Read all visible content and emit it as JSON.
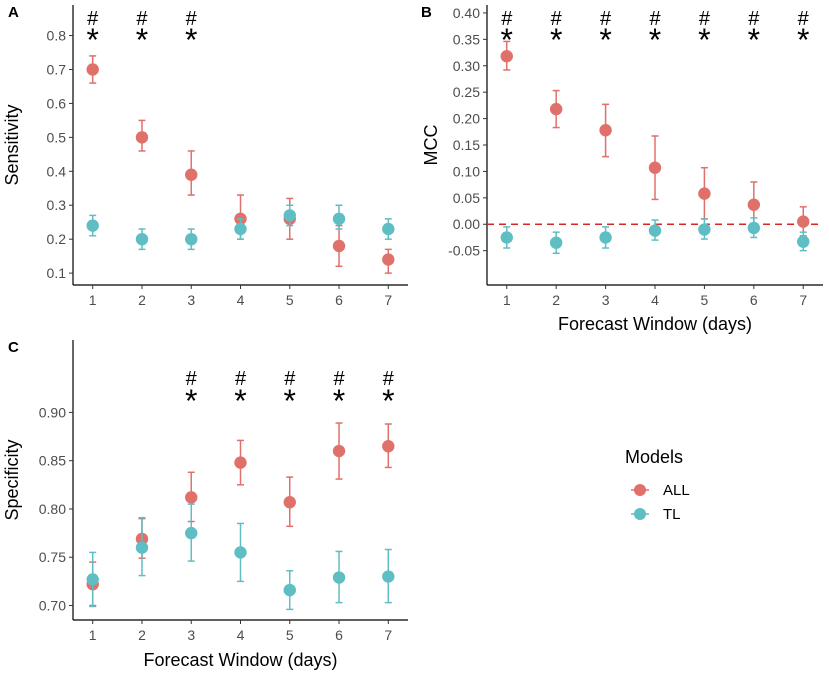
{
  "chart_data": [
    {
      "panel": "A",
      "type": "scatter",
      "title": "",
      "xlabel": "",
      "ylabel": "Sensitivity",
      "categories": [
        1,
        2,
        3,
        4,
        5,
        6,
        7
      ],
      "xlim": [
        0.6,
        7.4
      ],
      "ylim": [
        0.065,
        0.89
      ],
      "yticks": [
        0.1,
        0.2,
        0.3,
        0.4,
        0.5,
        0.6,
        0.7,
        0.8
      ],
      "ytick_labels": [
        "0.1",
        "0.2",
        "0.3",
        "0.4",
        "0.5",
        "0.6",
        "0.7",
        "0.8"
      ],
      "series": [
        {
          "name": "ALL",
          "values": [
            0.7,
            0.5,
            0.39,
            0.26,
            0.26,
            0.18,
            0.14
          ],
          "lower": [
            0.66,
            0.46,
            0.33,
            0.2,
            0.2,
            0.12,
            0.1
          ],
          "upper": [
            0.74,
            0.55,
            0.46,
            0.33,
            0.32,
            0.24,
            0.17
          ]
        },
        {
          "name": "TL",
          "values": [
            0.24,
            0.2,
            0.2,
            0.23,
            0.27,
            0.26,
            0.23
          ],
          "lower": [
            0.21,
            0.17,
            0.17,
            0.2,
            0.24,
            0.23,
            0.2
          ],
          "upper": [
            0.27,
            0.23,
            0.23,
            0.26,
            0.3,
            0.3,
            0.26
          ]
        }
      ],
      "annotations": [
        {
          "x": 1,
          "hash": "#",
          "star": "*"
        },
        {
          "x": 2,
          "hash": "#",
          "star": "*"
        },
        {
          "x": 3,
          "hash": "#",
          "star": "*"
        }
      ]
    },
    {
      "panel": "B",
      "type": "scatter",
      "title": "",
      "xlabel": "Forecast Window (days)",
      "ylabel": "MCC",
      "categories": [
        1,
        2,
        3,
        4,
        5,
        6,
        7
      ],
      "xlim": [
        0.6,
        7.4
      ],
      "ylim": [
        -0.115,
        0.415
      ],
      "yticks": [
        -0.05,
        0.0,
        0.05,
        0.1,
        0.15,
        0.2,
        0.25,
        0.3,
        0.35,
        0.4
      ],
      "ytick_labels": [
        "-0.05",
        "0.00",
        "0.05",
        "0.10",
        "0.15",
        "0.20",
        "0.25",
        "0.30",
        "0.35",
        "0.40"
      ],
      "reference_line": {
        "y": 0.0,
        "color": "#d62728",
        "style": "dashed"
      },
      "series": [
        {
          "name": "ALL",
          "values": [
            0.318,
            0.218,
            0.178,
            0.107,
            0.058,
            0.037,
            0.005
          ],
          "lower": [
            0.292,
            0.183,
            0.128,
            0.047,
            0.01,
            0.0,
            -0.022
          ],
          "upper": [
            0.346,
            0.253,
            0.227,
            0.167,
            0.107,
            0.08,
            0.033
          ]
        },
        {
          "name": "TL",
          "values": [
            -0.025,
            -0.035,
            -0.025,
            -0.012,
            -0.01,
            -0.007,
            -0.033
          ],
          "lower": [
            -0.045,
            -0.055,
            -0.045,
            -0.03,
            -0.028,
            -0.025,
            -0.05
          ],
          "upper": [
            -0.005,
            -0.015,
            -0.005,
            0.008,
            0.01,
            0.012,
            -0.015
          ]
        }
      ],
      "annotations": [
        {
          "x": 1,
          "hash": "#",
          "star": "*"
        },
        {
          "x": 2,
          "hash": "#",
          "star": "*"
        },
        {
          "x": 3,
          "hash": "#",
          "star": "*"
        },
        {
          "x": 4,
          "hash": "#",
          "star": "*"
        },
        {
          "x": 5,
          "hash": "#",
          "star": "*"
        },
        {
          "x": 6,
          "hash": "#",
          "star": "*"
        },
        {
          "x": 7,
          "hash": "#",
          "star": "*"
        }
      ]
    },
    {
      "panel": "C",
      "type": "scatter",
      "title": "",
      "xlabel": "Forecast Window (days)",
      "ylabel": "Specificity",
      "categories": [
        1,
        2,
        3,
        4,
        5,
        6,
        7
      ],
      "xlim": [
        0.6,
        7.4
      ],
      "ylim": [
        0.685,
        0.975
      ],
      "yticks": [
        0.7,
        0.75,
        0.8,
        0.85,
        0.9
      ],
      "ytick_labels": [
        "0.70",
        "0.75",
        "0.80",
        "0.85",
        "0.90"
      ],
      "series": [
        {
          "name": "ALL",
          "values": [
            0.722,
            0.769,
            0.812,
            0.848,
            0.807,
            0.86,
            0.865
          ],
          "lower": [
            0.7,
            0.749,
            0.787,
            0.825,
            0.782,
            0.831,
            0.843
          ],
          "upper": [
            0.745,
            0.79,
            0.838,
            0.871,
            0.833,
            0.889,
            0.888
          ]
        },
        {
          "name": "TL",
          "values": [
            0.727,
            0.76,
            0.775,
            0.755,
            0.716,
            0.729,
            0.73
          ],
          "lower": [
            0.699,
            0.731,
            0.746,
            0.725,
            0.696,
            0.703,
            0.703
          ],
          "upper": [
            0.755,
            0.791,
            0.805,
            0.785,
            0.736,
            0.756,
            0.758
          ]
        }
      ],
      "annotations": [
        {
          "x": 3,
          "hash": "#",
          "star": "*"
        },
        {
          "x": 4,
          "hash": "#",
          "star": "*"
        },
        {
          "x": 5,
          "hash": "#",
          "star": "*"
        },
        {
          "x": 6,
          "hash": "#",
          "star": "*"
        },
        {
          "x": 7,
          "hash": "#",
          "star": "*"
        }
      ]
    }
  ],
  "legend": {
    "title": "Models",
    "items": [
      {
        "label": "ALL",
        "color": "#e0706a"
      },
      {
        "label": "TL",
        "color": "#5fbec3"
      }
    ]
  },
  "colors": {
    "ALL": "#e0706a",
    "TL": "#5fbec3",
    "reference_line": "#d62728",
    "axis": "#000000",
    "tick_text": "#4d4d4d"
  }
}
